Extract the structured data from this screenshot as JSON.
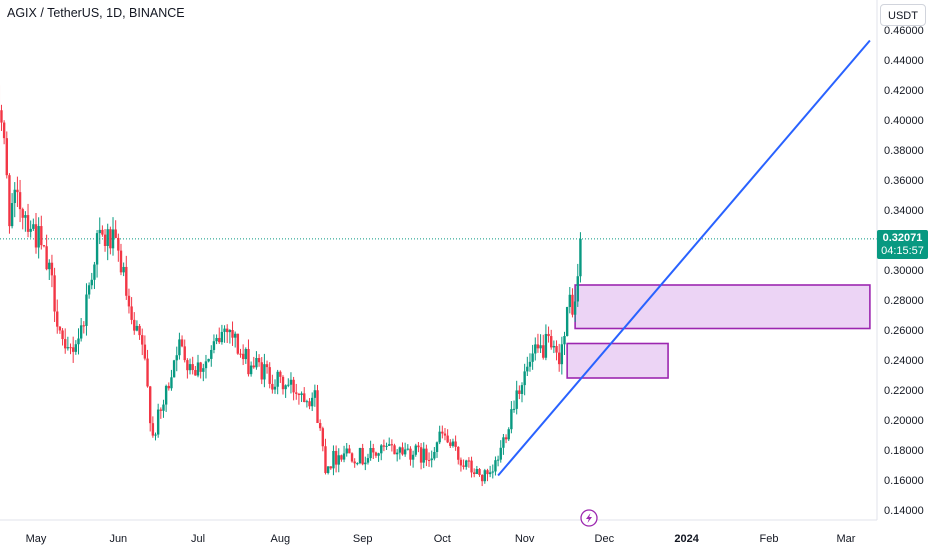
{
  "header": {
    "symbol_title": "AGIX / TetherUS, 1D, BINANCE",
    "currency_button": "USDT"
  },
  "price_badge": {
    "price": "0.32071",
    "countdown": "04:15:57",
    "color": "#089981"
  },
  "colors": {
    "up": "#089981",
    "down": "#f23645",
    "trendline": "#2962ff",
    "box_stroke": "#9c27b0",
    "box_fill": "#e9cdf3"
  },
  "icons": {
    "event_marker": "lightning-bolt-icon"
  },
  "chart_data": {
    "type": "candlestick",
    "title": "AGIX / TetherUS, 1D, BINANCE",
    "x_axis": {
      "type": "date",
      "range": [
        "2023-04-15",
        "2024-03-10"
      ],
      "tick_labels": [
        {
          "label": "May",
          "date": "2023-05-01"
        },
        {
          "label": "Jun",
          "date": "2023-06-01"
        },
        {
          "label": "Jul",
          "date": "2023-07-01"
        },
        {
          "label": "Aug",
          "date": "2023-08-01"
        },
        {
          "label": "Sep",
          "date": "2023-09-01"
        },
        {
          "label": "Oct",
          "date": "2023-10-01"
        },
        {
          "label": "Nov",
          "date": "2023-11-01"
        },
        {
          "label": "Dec",
          "date": "2023-12-01"
        },
        {
          "label": "2024",
          "date": "2024-01-01"
        },
        {
          "label": "Feb",
          "date": "2024-02-01"
        },
        {
          "label": "Mar",
          "date": "2024-03-01"
        }
      ]
    },
    "y_axis": {
      "side": "right",
      "range": [
        0.13,
        0.465
      ],
      "tick_labels": [
        "0.46000",
        "0.44000",
        "0.42000",
        "0.40000",
        "0.38000",
        "0.36000",
        "0.34000",
        "0.32000",
        "0.30000",
        "0.28000",
        "0.26000",
        "0.24000",
        "0.22000",
        "0.20000",
        "0.18000",
        "0.16000",
        "0.14000"
      ]
    },
    "current_price": 0.32071,
    "close_path": [
      [
        "2023-04-15",
        0.44
      ],
      [
        "2023-04-18",
        0.4
      ],
      [
        "2023-04-21",
        0.34
      ],
      [
        "2023-04-25",
        0.345
      ],
      [
        "2023-04-28",
        0.335
      ],
      [
        "2023-05-02",
        0.32
      ],
      [
        "2023-05-07",
        0.29
      ],
      [
        "2023-05-12",
        0.24
      ],
      [
        "2023-05-18",
        0.26
      ],
      [
        "2023-05-24",
        0.32
      ],
      [
        "2023-05-29",
        0.32
      ],
      [
        "2023-06-02",
        0.305
      ],
      [
        "2023-06-06",
        0.26
      ],
      [
        "2023-06-10",
        0.25
      ],
      [
        "2023-06-14",
        0.19
      ],
      [
        "2023-06-18",
        0.21
      ],
      [
        "2023-06-23",
        0.25
      ],
      [
        "2023-06-30",
        0.235
      ],
      [
        "2023-07-05",
        0.24
      ],
      [
        "2023-07-12",
        0.265
      ],
      [
        "2023-07-18",
        0.24
      ],
      [
        "2023-07-24",
        0.235
      ],
      [
        "2023-07-31",
        0.225
      ],
      [
        "2023-08-08",
        0.22
      ],
      [
        "2023-08-14",
        0.215
      ],
      [
        "2023-08-18",
        0.17
      ],
      [
        "2023-08-25",
        0.18
      ],
      [
        "2023-09-01",
        0.175
      ],
      [
        "2023-09-10",
        0.18
      ],
      [
        "2023-09-18",
        0.18
      ],
      [
        "2023-09-25",
        0.175
      ],
      [
        "2023-10-01",
        0.19
      ],
      [
        "2023-10-07",
        0.175
      ],
      [
        "2023-10-13",
        0.165
      ],
      [
        "2023-10-19",
        0.16
      ],
      [
        "2023-10-23",
        0.18
      ],
      [
        "2023-10-29",
        0.22
      ],
      [
        "2023-11-04",
        0.24
      ],
      [
        "2023-11-09",
        0.25
      ],
      [
        "2023-11-13",
        0.24
      ],
      [
        "2023-11-16",
        0.255
      ],
      [
        "2023-11-18",
        0.28
      ],
      [
        "2023-11-20",
        0.275
      ],
      [
        "2023-11-22",
        0.32071
      ]
    ],
    "overlays": {
      "trendline": {
        "start": [
          "2023-10-22",
          0.163
        ],
        "end": [
          "2024-03-10",
          0.453
        ]
      },
      "zones": [
        {
          "from": [
            "2023-11-20",
            0.29
          ],
          "to": [
            "2024-03-10",
            0.261
          ]
        },
        {
          "from": [
            "2023-11-17",
            0.251
          ],
          "to": [
            "2023-12-25",
            0.228
          ]
        }
      ],
      "current_price_line": 0.32071
    }
  }
}
